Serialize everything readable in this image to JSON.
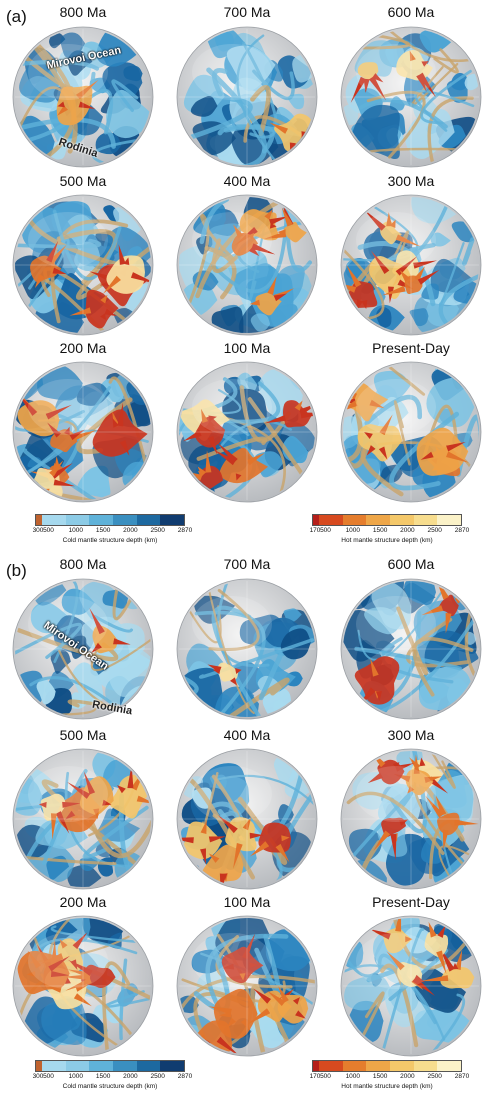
{
  "panel_a": {
    "label": "(a)",
    "frames": [
      "800 Ma",
      "700 Ma",
      "600 Ma",
      "500 Ma",
      "400 Ma",
      "300 Ma",
      "200 Ma",
      "100 Ma",
      "Present-Day"
    ],
    "annotations": [
      "Mirovoi Ocean",
      "Rodinia"
    ]
  },
  "panel_b": {
    "label": "(b)",
    "frames": [
      "800 Ma",
      "700 Ma",
      "600 Ma",
      "500 Ma",
      "400 Ma",
      "300 Ma",
      "200 Ma",
      "100 Ma",
      "Present-Day"
    ],
    "annotations": [
      "Mirovoi Ocean",
      "Rodinia"
    ]
  },
  "cold_colorbar": {
    "label": "Cold mantle structure depth (km)",
    "ticks": [
      "300",
      "500",
      "1000",
      "1500",
      "2000",
      "2500",
      "2870"
    ],
    "colors": [
      "#c0632f",
      "#a6d9ee",
      "#8ccbe6",
      "#5fb2d9",
      "#3a8fc0",
      "#1d69a0",
      "#103c70"
    ]
  },
  "hot_colorbar": {
    "label": "Hot mantle structure depth (km)",
    "ticks": [
      "170",
      "500",
      "1000",
      "1500",
      "2000",
      "2500",
      "2870"
    ],
    "colors": [
      "#b51f1a",
      "#d74a1f",
      "#e57d2d",
      "#eea648",
      "#f4c86a",
      "#f7dd8e",
      "#fbf2c8"
    ]
  }
}
